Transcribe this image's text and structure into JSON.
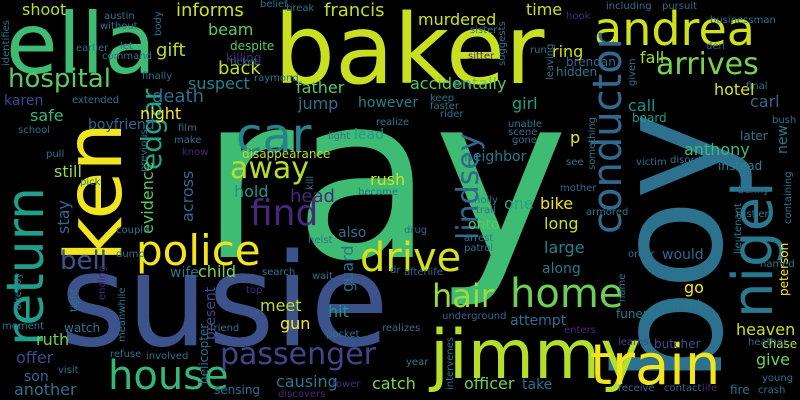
{
  "words": [
    {
      "text": "ray",
      "color": "#3fbc73"
    },
    {
      "text": "susie",
      "color": "#3b528b"
    },
    {
      "text": "boy",
      "color": "#2c728e"
    },
    {
      "text": "baker",
      "color": "#c8e020"
    },
    {
      "text": "ella",
      "color": "#3fbc73"
    },
    {
      "text": "ken",
      "color": "#f1e51d"
    },
    {
      "text": "andrea",
      "color": "#d0e11c"
    },
    {
      "text": "jimmy",
      "color": "#b5de2b"
    },
    {
      "text": "train",
      "color": "#f1e51d"
    },
    {
      "text": "return",
      "color": "#1f9e89"
    },
    {
      "text": "nigel",
      "color": "#2a788e"
    },
    {
      "text": "police",
      "color": "#f4e61e"
    },
    {
      "text": "conductor",
      "color": "#31688e"
    },
    {
      "text": "drive",
      "color": "#d5e21a"
    },
    {
      "text": "house",
      "color": "#35b779"
    },
    {
      "text": "home",
      "color": "#6ece58"
    },
    {
      "text": "passenger",
      "color": "#414487"
    },
    {
      "text": "car",
      "color": "#26828e"
    },
    {
      "text": "hair",
      "color": "#9fda3a"
    },
    {
      "text": "find",
      "color": "#482878"
    },
    {
      "text": "edgar",
      "color": "#20a486"
    },
    {
      "text": "lindsey",
      "color": "#31688e"
    },
    {
      "text": "away",
      "color": "#b5de2b"
    },
    {
      "text": "arrives",
      "color": "#7ad151"
    },
    {
      "text": "hospital",
      "color": "#5ec962"
    },
    {
      "text": "bell",
      "color": "#39568c"
    },
    {
      "text": "francis",
      "color": "#c2df23"
    },
    {
      "text": "murdered",
      "color": "#cde11d"
    },
    {
      "text": "informs",
      "color": "#d0e11c"
    },
    {
      "text": "shoot",
      "color": "#b5de2b"
    },
    {
      "text": "beam",
      "color": "#5ec962"
    },
    {
      "text": "gift",
      "color": "#bddf26"
    },
    {
      "text": "back",
      "color": "#c2df23"
    },
    {
      "text": "suspect",
      "color": "#26828e"
    },
    {
      "text": "death",
      "color": "#2e6e8e"
    },
    {
      "text": "night",
      "color": "#fde725"
    },
    {
      "text": "karen",
      "color": "#404688"
    },
    {
      "text": "hotel",
      "color": "#d8e219"
    },
    {
      "text": "fall",
      "color": "#a0da39"
    },
    {
      "text": "call",
      "color": "#1f958b"
    },
    {
      "text": "anthony",
      "color": "#3aba76"
    },
    {
      "text": "carl",
      "color": "#31688e"
    },
    {
      "text": "girl",
      "color": "#1fa088"
    },
    {
      "text": "accidentally",
      "color": "#5ec962"
    },
    {
      "text": "however",
      "color": "#26828e"
    },
    {
      "text": "father",
      "color": "#5ec962"
    },
    {
      "text": "jump",
      "color": "#2c728e"
    },
    {
      "text": "lead",
      "color": "#1f9a8a"
    },
    {
      "text": "evidence",
      "color": "#5ec962"
    },
    {
      "text": "across",
      "color": "#31688e"
    },
    {
      "text": "hold",
      "color": "#1f968b"
    },
    {
      "text": "head",
      "color": "#482878"
    },
    {
      "text": "rush",
      "color": "#cde11d"
    },
    {
      "text": "neighbor",
      "color": "#2a788e"
    },
    {
      "text": "bike",
      "color": "#f1e51d"
    },
    {
      "text": "one",
      "color": "#20a486"
    },
    {
      "text": "long",
      "color": "#cde11d"
    },
    {
      "text": "large",
      "color": "#26828e"
    },
    {
      "text": "along",
      "color": "#2a788e"
    },
    {
      "text": "would",
      "color": "#31688e"
    },
    {
      "text": "go",
      "color": "#fde725"
    },
    {
      "text": "heaven",
      "color": "#c8e020"
    },
    {
      "text": "give",
      "color": "#6ece58"
    },
    {
      "text": "child",
      "color": "#7fd34e"
    },
    {
      "text": "meet",
      "color": "#bddf26"
    },
    {
      "text": "gun",
      "color": "#fde725"
    },
    {
      "text": "hit",
      "color": "#1f968b"
    },
    {
      "text": "guard",
      "color": "#2c728e"
    },
    {
      "text": "onto",
      "color": "#5ec962"
    },
    {
      "text": "also",
      "color": "#2d708e"
    },
    {
      "text": "attempt",
      "color": "#2e6e8e"
    },
    {
      "text": "officer",
      "color": "#73d056"
    },
    {
      "text": "take",
      "color": "#2e6e8e"
    },
    {
      "text": "catch",
      "color": "#84d44b"
    },
    {
      "text": "causing",
      "color": "#2a788e"
    },
    {
      "text": "ruth",
      "color": "#6ece58"
    },
    {
      "text": "offer",
      "color": "#3e4a89"
    },
    {
      "text": "son",
      "color": "#31688e"
    },
    {
      "text": "another",
      "color": "#2c728e"
    },
    {
      "text": "still",
      "color": "#9fda3a"
    },
    {
      "text": "stay",
      "color": "#31688e"
    },
    {
      "text": "safe",
      "color": "#3aba76"
    },
    {
      "text": "boyfriend",
      "color": "#31688e"
    },
    {
      "text": "present",
      "color": "#404688"
    },
    {
      "text": "wife",
      "color": "#2c728e"
    },
    {
      "text": "helicopter",
      "color": "#2e6e8e"
    },
    {
      "text": "disappearance",
      "color": "#b5de2b"
    },
    {
      "text": "killing",
      "color": "#482878"
    },
    {
      "text": "despite",
      "color": "#5ec962"
    },
    {
      "text": "time",
      "color": "#c8e020"
    },
    {
      "text": "ring",
      "color": "#d0e11c"
    },
    {
      "text": "brendan",
      "color": "#31688e"
    },
    {
      "text": "hidden",
      "color": "#2a788e"
    },
    {
      "text": "board",
      "color": "#1f9e89"
    },
    {
      "text": "later",
      "color": "#2a788e"
    },
    {
      "text": "instead",
      "color": "#26828e"
    },
    {
      "text": "new",
      "color": "#2a788e"
    },
    {
      "text": "chase",
      "color": "#b5de2b"
    },
    {
      "text": "peterson",
      "color": "#fde725"
    },
    {
      "text": "lieutenant",
      "color": "#2a788e"
    },
    {
      "text": "named",
      "color": "#2a788e"
    },
    {
      "text": "rustler",
      "color": "#2a788e"
    },
    {
      "text": "armored",
      "color": "#2a788e"
    },
    {
      "text": "corrupt",
      "color": "#2a788e"
    },
    {
      "text": "funeral",
      "color": "#2a788e"
    },
    {
      "text": "butcher",
      "color": "#3e4a89"
    },
    {
      "text": "learns",
      "color": "#3e4a89"
    },
    {
      "text": "receive",
      "color": "#31688e"
    },
    {
      "text": "contact",
      "color": "#31688e"
    },
    {
      "text": "life",
      "color": "#482878"
    },
    {
      "text": "fire",
      "color": "#2c728e"
    },
    {
      "text": "crash",
      "color": "#2c728e"
    },
    {
      "text": "young",
      "color": "#2c728e"
    },
    {
      "text": "heather",
      "color": "#31688e"
    },
    {
      "text": "realizes",
      "color": "#2c728e"
    },
    {
      "text": "intervenes",
      "color": "#2c728e"
    },
    {
      "text": "underground",
      "color": "#31688e"
    },
    {
      "text": "year",
      "color": "#2a788e"
    },
    {
      "text": "tower",
      "color": "#482878"
    },
    {
      "text": "discovers",
      "color": "#482878"
    },
    {
      "text": "sensing",
      "color": "#2c728e"
    },
    {
      "text": "involved",
      "color": "#2c728e"
    },
    {
      "text": "refuse",
      "color": "#2c728e"
    },
    {
      "text": "visit",
      "color": "#2c728e"
    },
    {
      "text": "watch",
      "color": "#2a788e"
    },
    {
      "text": "moment",
      "color": "#2a788e"
    },
    {
      "text": "meanwhile",
      "color": "#2c728e"
    },
    {
      "text": "already",
      "color": "#2a788e"
    },
    {
      "text": "friend",
      "color": "#2c728e"
    },
    {
      "text": "top",
      "color": "#482878"
    },
    {
      "text": "search",
      "color": "#2a788e"
    },
    {
      "text": "wait",
      "color": "#2c728e"
    },
    {
      "text": "pocket",
      "color": "#2c728e"
    },
    {
      "text": "afterlife",
      "color": "#31688e"
    },
    {
      "text": "dr",
      "color": "#2c728e"
    },
    {
      "text": "heist",
      "color": "#2c728e"
    },
    {
      "text": "drug",
      "color": "#31688e"
    },
    {
      "text": "arrest",
      "color": "#2a788e"
    },
    {
      "text": "patrol",
      "color": "#2c728e"
    },
    {
      "text": "holly",
      "color": "#2a788e"
    },
    {
      "text": "trail",
      "color": "#2c728e"
    },
    {
      "text": "become",
      "color": "#2c728e"
    },
    {
      "text": "mother",
      "color": "#31688e"
    },
    {
      "text": "victim",
      "color": "#2c728e"
    },
    {
      "text": "disorder",
      "color": "#2c728e"
    },
    {
      "text": "benny",
      "color": "#31688e"
    },
    {
      "text": "see",
      "color": "#2a788e"
    },
    {
      "text": "light",
      "color": "#2c728e"
    },
    {
      "text": "realize",
      "color": "#2a788e"
    },
    {
      "text": "unable",
      "color": "#2a788e"
    },
    {
      "text": "scene",
      "color": "#2c728e"
    },
    {
      "text": "gone",
      "color": "#2c728e"
    },
    {
      "text": "keep",
      "color": "#2c728e"
    },
    {
      "text": "faster",
      "color": "#2c728e"
    },
    {
      "text": "rider",
      "color": "#2c728e"
    },
    {
      "text": "pin",
      "color": "#2a788e"
    },
    {
      "text": "run",
      "color": "#2c728e"
    },
    {
      "text": "sitter",
      "color": "#482878"
    },
    {
      "text": "leaving",
      "color": "#2c728e"
    },
    {
      "text": "suggests",
      "color": "#2c728e"
    },
    {
      "text": "pursuit",
      "color": "#31688e"
    },
    {
      "text": "including",
      "color": "#2c728e"
    },
    {
      "text": "businessman",
      "color": "#2c728e"
    },
    {
      "text": "den",
      "color": "#31688e"
    },
    {
      "text": "final",
      "color": "#2c728e"
    },
    {
      "text": "bush",
      "color": "#2c728e"
    },
    {
      "text": "containing",
      "color": "#2c728e"
    },
    {
      "text": "given",
      "color": "#2c728e"
    },
    {
      "text": "hook",
      "color": "#482878"
    },
    {
      "text": "something",
      "color": "#2c728e"
    },
    {
      "text": "sister",
      "color": "#2a788e"
    },
    {
      "text": "belief",
      "color": "#2c728e"
    },
    {
      "text": "break",
      "color": "#2c728e"
    },
    {
      "text": "austin",
      "color": "#2c728e"
    },
    {
      "text": "without",
      "color": "#2c728e"
    },
    {
      "text": "earlier",
      "color": "#2c728e"
    },
    {
      "text": "let",
      "color": "#31688e"
    },
    {
      "text": "command",
      "color": "#2c728e"
    },
    {
      "text": "body",
      "color": "#2c728e"
    },
    {
      "text": "finally",
      "color": "#2c728e"
    },
    {
      "text": "extended",
      "color": "#2c728e"
    },
    {
      "text": "raymond",
      "color": "#2c728e"
    },
    {
      "text": "film",
      "color": "#2c728e"
    },
    {
      "text": "make",
      "color": "#2c728e"
    },
    {
      "text": "know",
      "color": "#482878"
    },
    {
      "text": "previous",
      "color": "#2c728e"
    },
    {
      "text": "school",
      "color": "#2c728e"
    },
    {
      "text": "pull",
      "color": "#2c728e"
    },
    {
      "text": "pick",
      "color": "#2c728e"
    },
    {
      "text": "couple",
      "color": "#2c728e"
    },
    {
      "text": "dump",
      "color": "#2c728e"
    },
    {
      "text": "ticket",
      "color": "#2c728e"
    },
    {
      "text": "kill",
      "color": "#2c728e"
    },
    {
      "text": "ending",
      "color": "#482878"
    },
    {
      "text": "identifies",
      "color": "#2c728e"
    },
    {
      "text": "enters",
      "color": "#482878"
    },
    {
      "text": "name",
      "color": "#2c728e"
    },
    {
      "text": "order",
      "color": "#2c728e"
    },
    {
      "text": "tight",
      "color": "#2c728e"
    },
    {
      "text": "p",
      "color": "#f1e51d"
    }
  ]
}
